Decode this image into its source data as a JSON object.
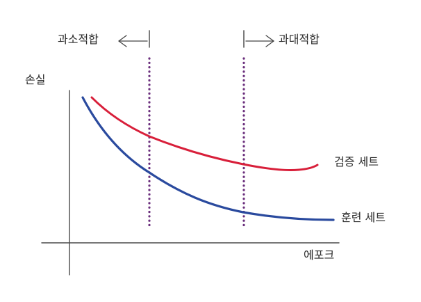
{
  "labels": {
    "underfit": "과소적합",
    "overfit": "과대적합",
    "y_axis": "손실",
    "x_axis": "에포크",
    "validation": "검증 세트",
    "training": "훈련 세트"
  },
  "colors": {
    "validation": "#d81f3a",
    "training": "#2a4a9e",
    "boundary": "#6b2f7d",
    "axis": "#4a4a4a"
  }
}
